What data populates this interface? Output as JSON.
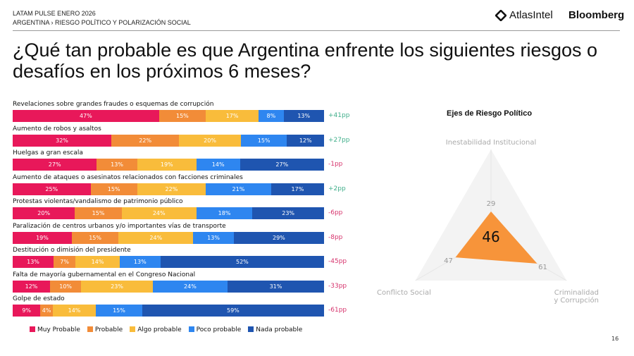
{
  "header": {
    "line1": "LATAM PULSE ENERO 2026",
    "line2": "ARGENTINA › RIESGO POLÍTICO Y POLARIZACIÓN SOCIAL",
    "logo_atlas": "AtlasIntel",
    "logo_bloomberg": "Bloomberg"
  },
  "title": "¿Qué tan probable es que Argentina enfrente los siguientes riesgos o desafíos en los próximos 6 meses?",
  "page_number": "16",
  "colors": {
    "muy": "#e8185a",
    "probable": "#f28c38",
    "algo": "#f9bc3b",
    "poco": "#2e86f0",
    "nada": "#1f55b0",
    "positive": "#3fae8a",
    "negative": "#d6336c",
    "radar": "#f7943a"
  },
  "chart_data": [
    {
      "type": "bar",
      "stacked": true,
      "orientation": "horizontal",
      "unit": "%",
      "legend": [
        "Muy Probable",
        "Probable",
        "Algo probable",
        "Poco probable",
        "Nada probable"
      ],
      "legend_placement": "bottom",
      "rows": [
        {
          "label": "Revelaciones sobre grandes fraudes o esquemas de corrupción",
          "values": [
            47,
            15,
            17,
            8,
            13
          ],
          "net": "+41pp"
        },
        {
          "label": "Aumento de robos y asaltos",
          "values": [
            32,
            22,
            20,
            15,
            12
          ],
          "net": "+27pp"
        },
        {
          "label": "Huelgas a gran escala",
          "values": [
            27,
            13,
            19,
            14,
            27
          ],
          "net": "-1pp"
        },
        {
          "label": "Aumento de ataques o asesinatos relacionados con facciones criminales",
          "values": [
            25,
            15,
            22,
            21,
            17
          ],
          "net": "+2pp"
        },
        {
          "label": "Protestas violentas/vandalismo de patrimonio público",
          "values": [
            20,
            15,
            24,
            18,
            23
          ],
          "net": "-6pp"
        },
        {
          "label": "Paralización de centros urbanos y/o importantes vías de transporte",
          "values": [
            19,
            15,
            24,
            13,
            29
          ],
          "net": "-8pp"
        },
        {
          "label": "Destitución o dimisión del presidente",
          "values": [
            13,
            7,
            14,
            13,
            52
          ],
          "net": "-45pp"
        },
        {
          "label": "Falta de mayoría gubernamental en el Congreso Nacional",
          "values": [
            12,
            10,
            23,
            24,
            31
          ],
          "net": "-33pp"
        },
        {
          "label": "Golpe de estado",
          "values": [
            9,
            4,
            14,
            15,
            59
          ],
          "net": "-61pp"
        }
      ]
    },
    {
      "type": "radar",
      "title": "Ejes de Riesgo Político",
      "range": [
        0,
        100
      ],
      "axes": [
        {
          "label": "Inestabilidad Institucional",
          "value": 29
        },
        {
          "label": "Criminalidad y Corrupción",
          "value": 61
        },
        {
          "label": "Conflicto Social",
          "value": 47
        }
      ],
      "center_value": "46"
    }
  ]
}
